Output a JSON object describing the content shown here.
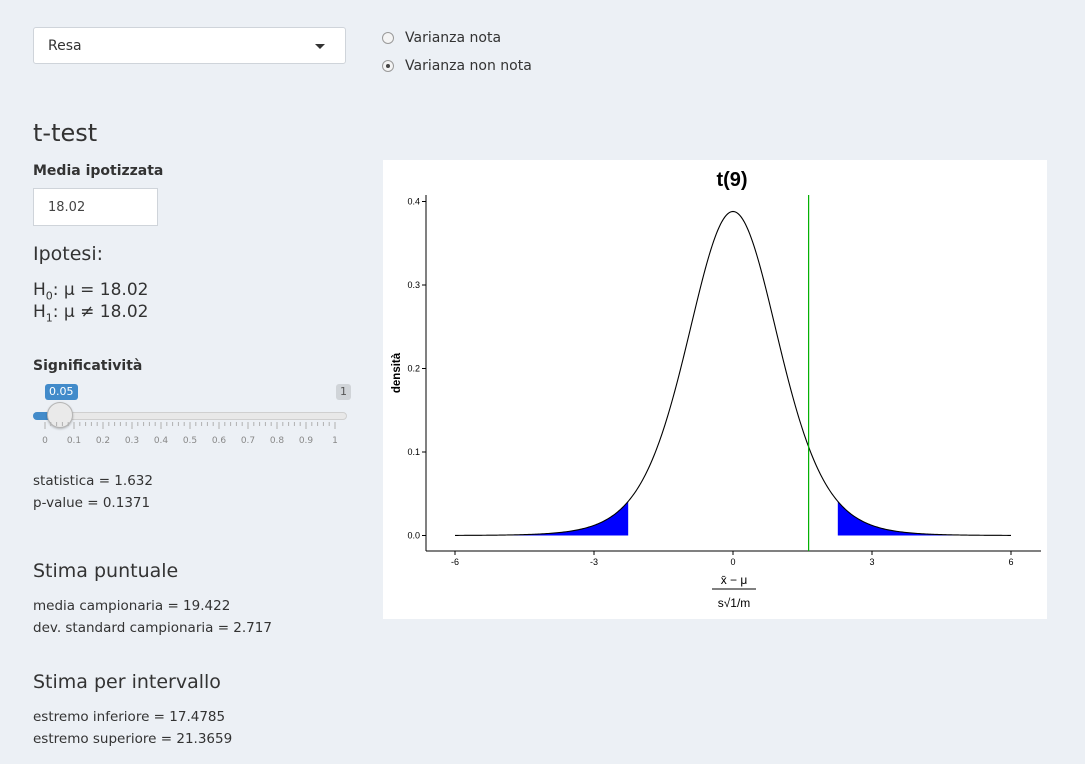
{
  "select": {
    "value": "Resa"
  },
  "variance": {
    "options": [
      {
        "label": "Varianza nota",
        "checked": false
      },
      {
        "label": "Varianza non nota",
        "checked": true
      }
    ]
  },
  "test": {
    "title": "t-test",
    "media_label": "Media ipotizzata",
    "media_value": "18.02",
    "hyp_title": "Ipotesi:",
    "h0_sub": "0",
    "h0_rest": ": μ = 18.02",
    "h1_sub": "1",
    "h1_rest": ": μ ≠ 18.02",
    "sig_label": "Significatività",
    "sig_value": "0.05",
    "sig_max": "1",
    "slider_level": 0.05,
    "ticks": [
      "0",
      "0.1",
      "0.2",
      "0.3",
      "0.4",
      "0.5",
      "0.6",
      "0.7",
      "0.8",
      "0.9",
      "1"
    ],
    "statistica": "statistica = 1.632",
    "pvalue": "p-value = 0.1371"
  },
  "puntuale": {
    "title": "Stima puntuale",
    "media": "media campionaria = 19.422",
    "dev": "dev. standard campionaria = 2.717"
  },
  "intervallo": {
    "title": "Stima per intervallo",
    "inf": "estremo inferiore = 17.4785",
    "sup": "estremo superiore = 21.3659"
  },
  "chart_data": {
    "type": "line",
    "title": "t(9)",
    "ylabel": "densità",
    "xlabel_num": "x̄ − μ",
    "xlabel_den": "s√1/m",
    "df": 9,
    "xlim": [
      -6,
      6
    ],
    "ylim": [
      0,
      0.4
    ],
    "x_ticks": [
      -6,
      -3,
      0,
      3,
      6
    ],
    "y_ticks": [
      0.0,
      0.1,
      0.2,
      0.3,
      0.4
    ],
    "y_tick_labels": [
      "0.0",
      "0.1",
      "0.2",
      "0.3",
      "0.4"
    ],
    "critical": 2.262,
    "statistic": 1.632,
    "colors": {
      "curve": "#000000",
      "tails": "#0000ff",
      "stat_line": "#00b000"
    }
  }
}
